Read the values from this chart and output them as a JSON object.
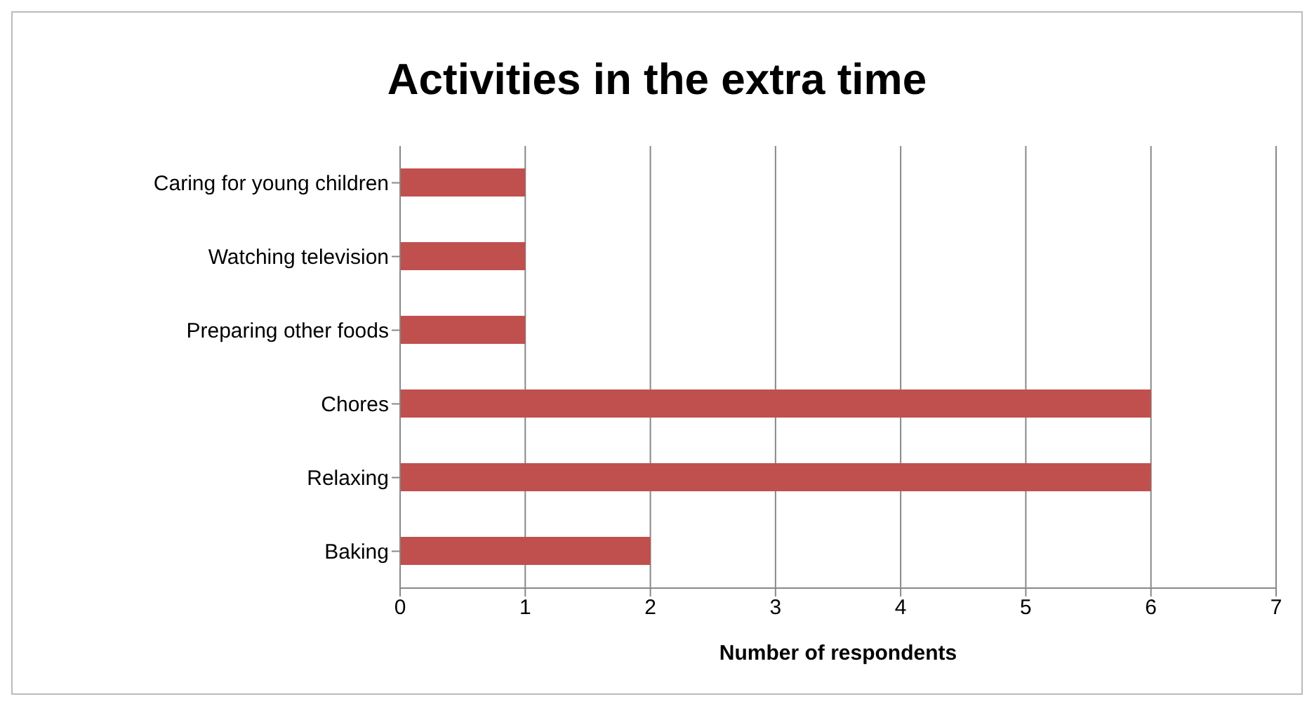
{
  "chart_data": {
    "type": "bar",
    "orientation": "horizontal",
    "title": "Activities in the extra time",
    "xlabel": "Number of respondents",
    "categories": [
      "Caring for young children",
      "Watching television",
      "Preparing other foods",
      "Chores",
      "Relaxing",
      "Baking"
    ],
    "series": [
      {
        "color": "#c0504d",
        "values": [
          1,
          1,
          1,
          6,
          6,
          2
        ]
      }
    ],
    "xlim": [
      0,
      7
    ],
    "xticks": [
      0,
      1,
      2,
      3,
      4,
      5,
      6,
      7
    ],
    "grid": "x",
    "legend": false
  }
}
